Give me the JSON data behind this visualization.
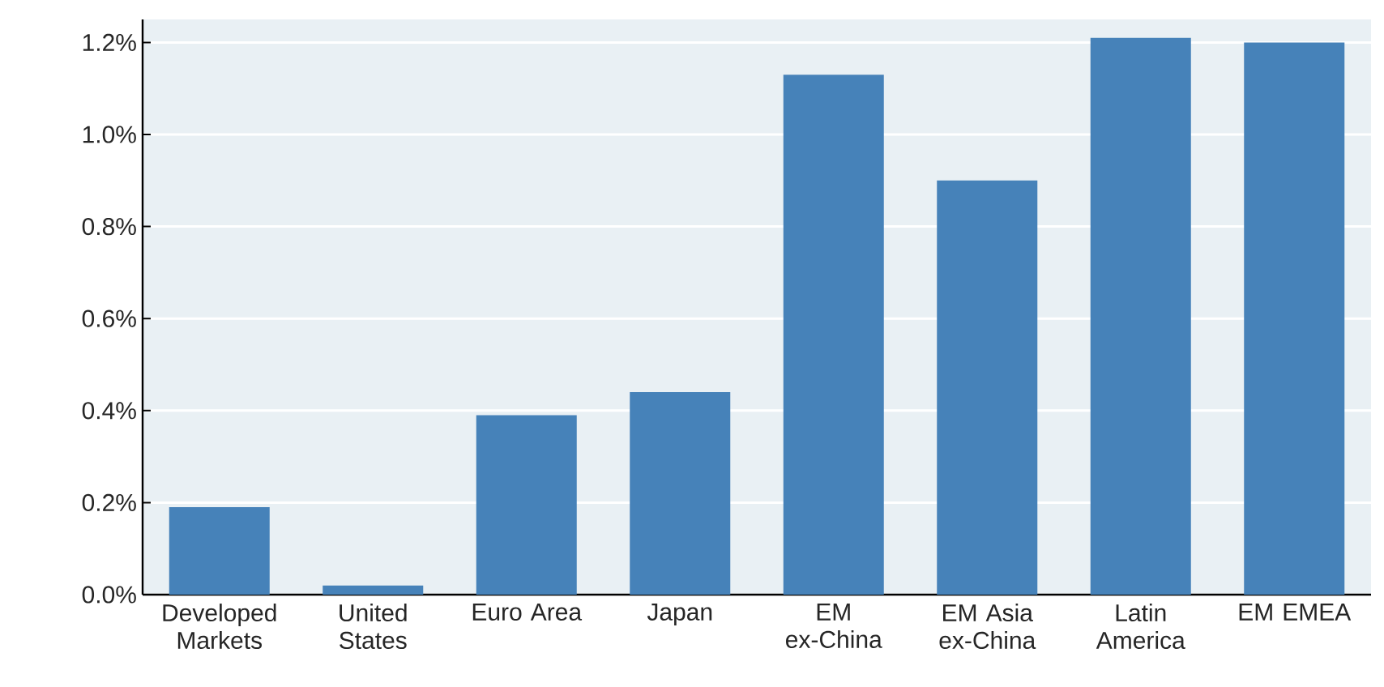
{
  "chart_data": {
    "type": "bar",
    "categories": [
      "Developed Markets",
      "United States",
      "Euro Area",
      "Japan",
      "EM ex-China",
      "EM Asia ex-China",
      "Latin America",
      "EM EMEA"
    ],
    "values": [
      0.19,
      0.02,
      0.39,
      0.44,
      1.13,
      0.9,
      1.21,
      1.2
    ],
    "color": "#4682b9",
    "ylim": [
      0,
      1.25
    ],
    "yticks": [
      {
        "value": 0,
        "label": "0.0%"
      },
      {
        "value": 0.2,
        "label": "0.2%"
      },
      {
        "value": 0.4,
        "label": "0.4%"
      },
      {
        "value": 0.6,
        "label": "0.6%"
      },
      {
        "value": 0.8,
        "label": "0.8%"
      },
      {
        "value": 1.0,
        "label": "1.0%"
      },
      {
        "value": 1.2,
        "label": "1.2%"
      }
    ],
    "grid": "y"
  }
}
